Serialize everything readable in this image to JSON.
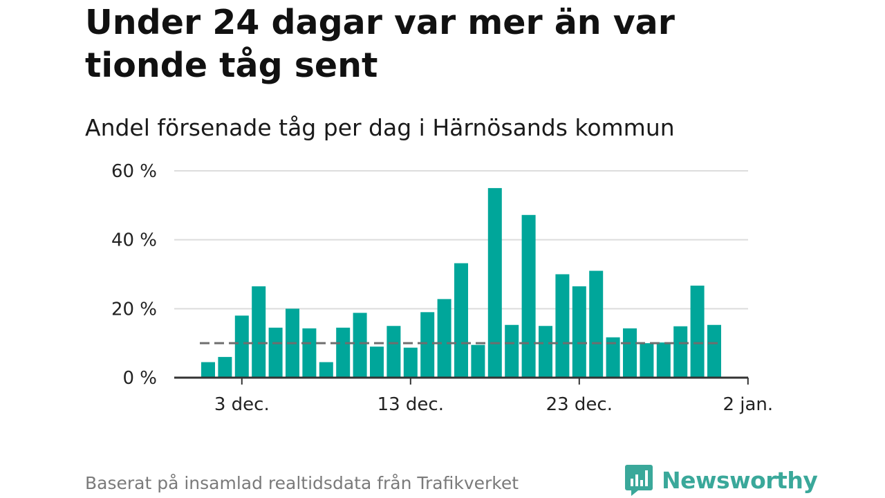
{
  "title": "Under 24 dagar var mer än var tionde tåg sent",
  "subtitle": "Andel försenade tåg per dag i Härnösands kommun",
  "footer": "Baserat på insamlad realtidsdata från Trafikverket",
  "brand": {
    "name": "Newsworthy",
    "icon": "newsworthy-logo-icon",
    "color": "#3aa89a"
  },
  "chart_data": {
    "type": "bar",
    "bar_color": "#00a69a",
    "reference_line": {
      "value": 10,
      "style": "dashed",
      "color": "#6e6e6e"
    },
    "x_start_date": "2021-12-01",
    "x": [
      "2021-12-01",
      "2021-12-02",
      "2021-12-03",
      "2021-12-04",
      "2021-12-05",
      "2021-12-06",
      "2021-12-07",
      "2021-12-08",
      "2021-12-09",
      "2021-12-10",
      "2021-12-11",
      "2021-12-12",
      "2021-12-13",
      "2021-12-14",
      "2021-12-15",
      "2021-12-16",
      "2021-12-17",
      "2021-12-18",
      "2021-12-19",
      "2021-12-20",
      "2021-12-21",
      "2021-12-22",
      "2021-12-23",
      "2021-12-24",
      "2021-12-25",
      "2021-12-26",
      "2021-12-27",
      "2021-12-28",
      "2021-12-29",
      "2021-12-30",
      "2021-12-31"
    ],
    "values": [
      4.5,
      6,
      18,
      26.5,
      14.5,
      20,
      14.3,
      4.5,
      14.5,
      18.8,
      9,
      15,
      8.7,
      19,
      22.8,
      33.2,
      9.5,
      55,
      15.3,
      47.2,
      15,
      30,
      26.5,
      31,
      11.7,
      14.3,
      10,
      10.2,
      14.9,
      26.7,
      15.3
    ],
    "ylim": [
      0,
      60
    ],
    "y_ticks": [
      0,
      20,
      40,
      60
    ],
    "y_tick_labels": [
      "0 %",
      "20 %",
      "40 %",
      "60 %"
    ],
    "x_ticks": [
      {
        "date": "2021-12-03",
        "label": "3 dec."
      },
      {
        "date": "2021-12-13",
        "label": "13 dec."
      },
      {
        "date": "2021-12-23",
        "label": "23 dec."
      },
      {
        "date": "2022-01-02",
        "label": "2 jan."
      }
    ],
    "grid": true,
    "legend": "none"
  }
}
